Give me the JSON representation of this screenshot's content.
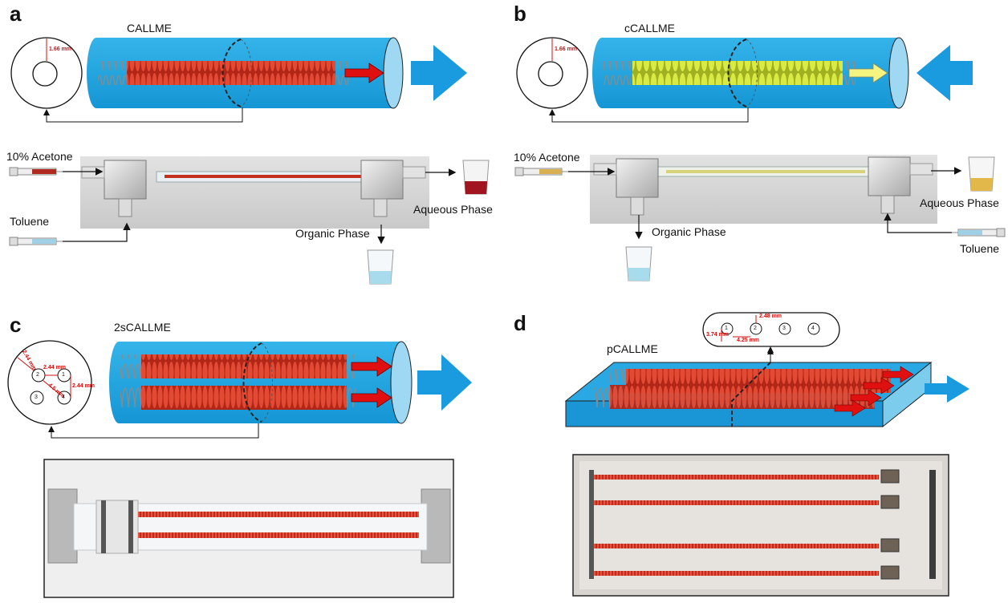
{
  "panels": {
    "a": {
      "letter": "a",
      "title": "CALLME",
      "dim_label": "1.66 mm",
      "acetone_label": "10% Acetone",
      "toluene_label": "Toluene",
      "organic_label": "Organic Phase",
      "aqueous_label": "Aqueous Phase",
      "coil_color": "#d0301e",
      "flow_direction": "right"
    },
    "b": {
      "letter": "b",
      "title": "cCALLME",
      "dim_label": "1.66 mm",
      "acetone_label": "10% Acetone",
      "toluene_label": "Toluene",
      "organic_label": "Organic Phase",
      "aqueous_label": "Aqueous Phase",
      "coil_color": "#d6e840",
      "flow_direction": "left"
    },
    "c": {
      "letter": "c",
      "title": "2sCALLME",
      "dims": [
        "2.44 mm",
        "2.44 mm",
        "2.44 mm",
        "4.5 mm"
      ],
      "holes": [
        "2",
        "1",
        "3",
        "4"
      ]
    },
    "d": {
      "letter": "d",
      "title": "pCALLME",
      "dims": [
        "2.48 mm",
        "3.74 mm",
        "4.25 mm"
      ],
      "holes": [
        "1",
        "2",
        "3",
        "4"
      ]
    }
  },
  "colors": {
    "tube_blue": "#1aa3e0",
    "arrow_blue": "#1a9be0",
    "coil_red": "#d0301e",
    "coil_yellow": "#d6e840",
    "arrow_red": "#e01010",
    "arrow_yellow": "#f4f480"
  }
}
